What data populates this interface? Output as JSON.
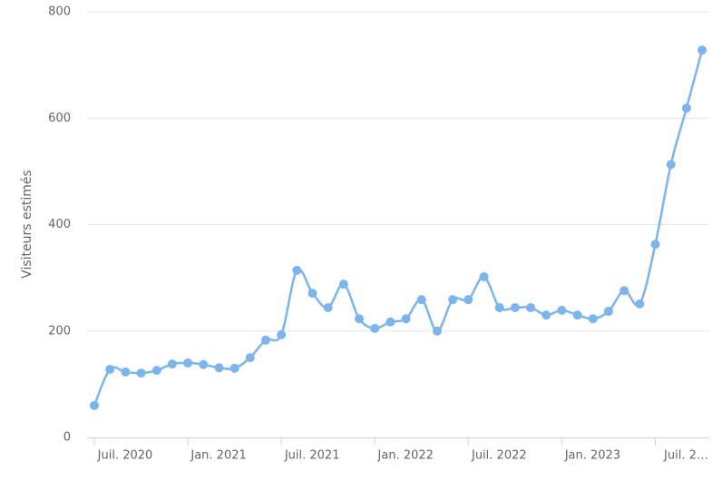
{
  "chart_data": {
    "type": "line",
    "y_label": "Visiteurs estimés",
    "x": [
      "2020-07",
      "2020-08",
      "2020-09",
      "2020-10",
      "2020-11",
      "2020-12",
      "2021-01",
      "2021-02",
      "2021-03",
      "2021-04",
      "2021-05",
      "2021-06",
      "2021-07",
      "2021-08",
      "2021-09",
      "2021-10",
      "2021-11",
      "2021-12",
      "2022-01",
      "2022-02",
      "2022-03",
      "2022-04",
      "2022-05",
      "2022-06",
      "2022-07",
      "2022-08",
      "2022-09",
      "2022-10",
      "2022-11",
      "2022-12",
      "2023-01",
      "2023-02",
      "2023-03",
      "2023-04",
      "2023-05",
      "2023-06",
      "2023-07",
      "2023-08",
      "2023-09",
      "2023-10"
    ],
    "series": [
      {
        "name": "Visiteurs estimés",
        "color": "#7cb5ec",
        "values": [
          60,
          128,
          123,
          121,
          126,
          138,
          140,
          137,
          131,
          130,
          150,
          183,
          193,
          314,
          271,
          244,
          288,
          223,
          205,
          217,
          223,
          259,
          200,
          259,
          259,
          302,
          244,
          244,
          244,
          230,
          239,
          230,
          223,
          237,
          276,
          251,
          363,
          513,
          619,
          728
        ]
      }
    ],
    "ylim": [
      0,
      800
    ],
    "yticks": [
      0,
      200,
      400,
      600,
      800
    ],
    "grid": true,
    "xticks": [
      {
        "value": "2020-07",
        "label": "Juil. 2020"
      },
      {
        "value": "2021-01",
        "label": "Jan. 2021"
      },
      {
        "value": "2021-07",
        "label": "Juil. 2021"
      },
      {
        "value": "2022-01",
        "label": "Jan. 2022"
      },
      {
        "value": "2022-07",
        "label": "Juil. 2022"
      },
      {
        "value": "2023-01",
        "label": "Jan. 2023"
      },
      {
        "value": "2023-07",
        "label": "Juil. 2…"
      }
    ]
  }
}
